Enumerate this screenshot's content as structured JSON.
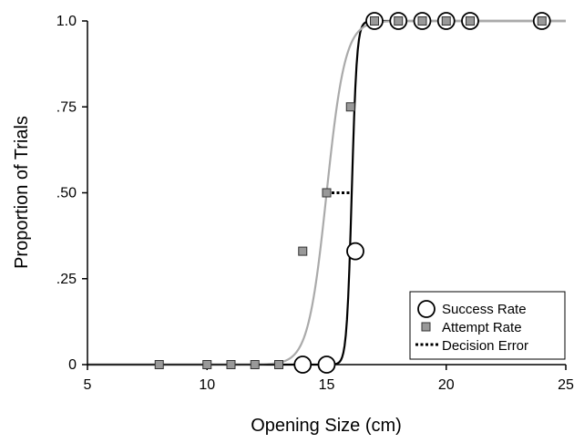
{
  "chart_data": {
    "type": "scatter",
    "xlabel": "Opening Size (cm)",
    "ylabel": "Proportion of Trials",
    "xlim": [
      5,
      25
    ],
    "ylim": [
      0,
      1
    ],
    "x_ticks": [
      5,
      10,
      15,
      20,
      25
    ],
    "x_tick_labels": [
      "5",
      "10",
      "15",
      "20",
      "25"
    ],
    "y_ticks": [
      0,
      0.25,
      0.5,
      0.75,
      1.0
    ],
    "y_tick_labels": [
      "0",
      ".25",
      ".50",
      ".75",
      "1.0"
    ],
    "grid": false,
    "legend_position": "bottom-right",
    "series": [
      {
        "name": "Success Rate",
        "kind": "points",
        "marker": "open-circle",
        "x": [
          14,
          15,
          16.2,
          17,
          18,
          19,
          20,
          21,
          24
        ],
        "y": [
          0,
          0,
          0.33,
          1,
          1,
          1,
          1,
          1,
          1
        ]
      },
      {
        "name": "Attempt Rate",
        "kind": "points",
        "marker": "gray-square",
        "x": [
          8,
          10,
          11,
          12,
          13,
          14,
          15,
          16,
          17,
          18,
          19,
          20,
          21,
          24
        ],
        "y": [
          0,
          0,
          0,
          0,
          0,
          0.33,
          0.5,
          0.75,
          1,
          1,
          1,
          1,
          1,
          1
        ]
      },
      {
        "name": "Decision Error",
        "kind": "dotted-segment",
        "x": [
          15,
          16.05
        ],
        "y": [
          0.5,
          0.5
        ]
      }
    ],
    "fitted_curves": [
      {
        "of": "Success Rate",
        "color": "#000000",
        "midpoint": 16.05,
        "slope": 9.5
      },
      {
        "of": "Attempt Rate",
        "color": "#aaaaaa",
        "midpoint": 15.0,
        "slope": 2.6
      }
    ]
  }
}
